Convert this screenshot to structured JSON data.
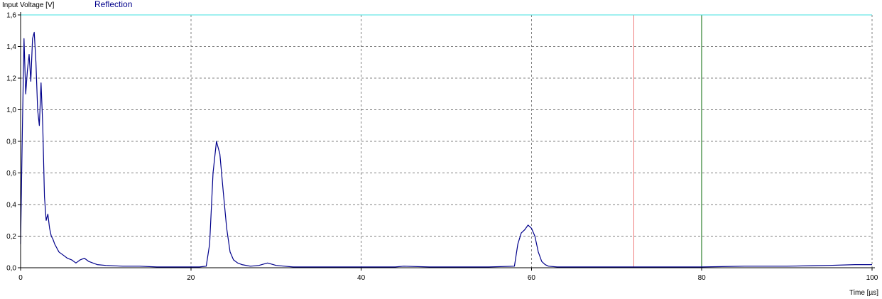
{
  "chart_data": {
    "type": "line",
    "ylabel": "Input Voltage [V]",
    "xlabel": "Time [µs]",
    "xlim": [
      0,
      100
    ],
    "ylim": [
      0,
      1.6
    ],
    "x_ticks": [
      0,
      20,
      40,
      60,
      80,
      100
    ],
    "x_tick_labels": [
      "0",
      "20",
      "40",
      "60",
      "80",
      "100"
    ],
    "y_ticks": [
      0,
      0.2,
      0.4,
      0.6,
      0.8,
      1.0,
      1.2,
      1.4,
      1.6
    ],
    "y_tick_labels": [
      "0,0",
      "0,2",
      "0,4",
      "0,6",
      "0,8",
      "1,0",
      "1,2",
      "1,4",
      "1,6"
    ],
    "grid": true,
    "legend_position": "top-left",
    "series": [
      {
        "name": "Reflection",
        "color": "#00008b",
        "x": [
          0,
          0.2,
          0.4,
          0.6,
          0.8,
          1.0,
          1.2,
          1.4,
          1.6,
          1.8,
          2.0,
          2.2,
          2.4,
          2.6,
          2.8,
          3.0,
          3.2,
          3.4,
          3.6,
          3.8,
          4.0,
          4.5,
          5.0,
          5.5,
          6.0,
          6.5,
          7.0,
          7.5,
          8.0,
          9.0,
          10,
          12,
          14,
          16,
          18,
          20,
          21,
          21.8,
          22.2,
          22.6,
          23.0,
          23.4,
          23.8,
          24.2,
          24.6,
          25.0,
          25.5,
          26,
          27,
          28,
          29,
          30,
          31,
          32,
          35,
          40,
          44,
          45,
          48,
          50,
          55,
          58,
          58.4,
          58.8,
          59.2,
          59.6,
          60.0,
          60.4,
          60.8,
          61.2,
          61.6,
          62,
          63,
          65,
          70,
          72,
          75,
          80,
          85,
          90,
          95,
          98,
          100
        ],
        "y": [
          0.15,
          0.85,
          1.45,
          1.1,
          1.25,
          1.35,
          1.18,
          1.45,
          1.49,
          1.3,
          1.0,
          0.9,
          1.17,
          0.9,
          0.45,
          0.3,
          0.34,
          0.25,
          0.2,
          0.18,
          0.15,
          0.1,
          0.08,
          0.06,
          0.05,
          0.03,
          0.05,
          0.06,
          0.04,
          0.02,
          0.015,
          0.01,
          0.01,
          0.005,
          0.005,
          0.005,
          0.005,
          0.01,
          0.15,
          0.6,
          0.8,
          0.72,
          0.48,
          0.25,
          0.1,
          0.05,
          0.03,
          0.02,
          0.01,
          0.015,
          0.03,
          0.015,
          0.01,
          0.005,
          0.005,
          0.005,
          0.005,
          0.01,
          0.005,
          0.005,
          0.005,
          0.01,
          0.15,
          0.22,
          0.24,
          0.27,
          0.25,
          0.2,
          0.1,
          0.04,
          0.02,
          0.01,
          0.005,
          0.005,
          0.005,
          0.005,
          0.005,
          0.005,
          0.01,
          0.01,
          0.015,
          0.02,
          0.02
        ]
      }
    ],
    "markers": [
      {
        "x": 72,
        "color": "#f08080"
      },
      {
        "x": 80,
        "color": "#006400"
      }
    ]
  }
}
